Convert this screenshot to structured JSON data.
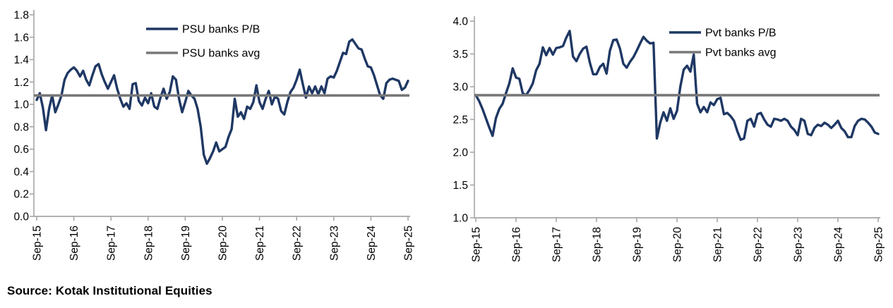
{
  "source_note": "Source: Kotak Institutional Equities",
  "colors": {
    "line_navy": "#1f3864",
    "avg_gray": "#787878",
    "axis_gray": "#a6a6a6",
    "text_black": "#000000"
  },
  "chart_data": [
    {
      "type": "line",
      "name": "psu-banks-pb",
      "title": "",
      "x_ticklabels": [
        "Sep-15",
        "Sep-16",
        "Sep-17",
        "Sep-18",
        "Sep-19",
        "Sep-20",
        "Sep-21",
        "Sep-22",
        "Sep-23",
        "Sep-24",
        "Sep-25"
      ],
      "ylim": [
        0.0,
        1.8
      ],
      "ytick_labels": [
        "0.0",
        "0.2",
        "0.4",
        "0.6",
        "0.8",
        "1.0",
        "1.2",
        "1.4",
        "1.6",
        "1.8"
      ],
      "grid": false,
      "legend_position": "top-center-inside",
      "series": [
        {
          "name": "PSU banks P/B",
          "kind": "line",
          "color_key": "line_navy",
          "values": [
            1.04,
            1.1,
            0.97,
            0.77,
            0.96,
            1.08,
            0.93,
            1.0,
            1.08,
            1.22,
            1.28,
            1.31,
            1.33,
            1.3,
            1.25,
            1.3,
            1.22,
            1.17,
            1.26,
            1.34,
            1.36,
            1.27,
            1.2,
            1.14,
            1.2,
            1.26,
            1.14,
            1.05,
            0.98,
            1.01,
            0.96,
            1.18,
            1.19,
            1.03,
            0.99,
            1.06,
            1.01,
            1.1,
            0.98,
            0.96,
            1.06,
            1.14,
            1.05,
            1.11,
            1.25,
            1.22,
            1.05,
            0.93,
            1.02,
            1.12,
            1.08,
            1.05,
            0.96,
            0.8,
            0.55,
            0.47,
            0.52,
            0.58,
            0.66,
            0.58,
            0.6,
            0.62,
            0.71,
            0.78,
            1.05,
            0.89,
            0.93,
            0.87,
            0.98,
            0.96,
            1.02,
            1.17,
            1.02,
            0.96,
            1.05,
            1.12,
            1.0,
            1.07,
            1.05,
            0.94,
            0.91,
            1.02,
            1.11,
            1.15,
            1.22,
            1.31,
            1.18,
            1.06,
            1.16,
            1.1,
            1.16,
            1.09,
            1.16,
            1.1,
            1.23,
            1.25,
            1.24,
            1.3,
            1.38,
            1.46,
            1.45,
            1.56,
            1.58,
            1.54,
            1.5,
            1.49,
            1.41,
            1.34,
            1.33,
            1.26,
            1.17,
            1.08,
            1.05,
            1.19,
            1.22,
            1.23,
            1.22,
            1.21,
            1.13,
            1.15,
            1.21
          ]
        },
        {
          "name": "PSU banks avg",
          "kind": "hline",
          "color_key": "avg_gray",
          "value": 1.08
        }
      ]
    },
    {
      "type": "line",
      "name": "pvt-banks-pb",
      "title": "",
      "x_ticklabels": [
        "Sep-15",
        "Sep-16",
        "Sep-17",
        "Sep-18",
        "Sep-19",
        "Sep-20",
        "Sep-21",
        "Sep-22",
        "Sep-23",
        "Sep-24",
        "Sep-25"
      ],
      "ylim": [
        1.0,
        4.0
      ],
      "ytick_labels": [
        "1.0",
        "1.5",
        "2.0",
        "2.5",
        "3.0",
        "3.5",
        "4.0"
      ],
      "grid": false,
      "legend_position": "top-right-inside",
      "series": [
        {
          "name": "Pvt banks P/B",
          "kind": "line",
          "color_key": "line_navy",
          "values": [
            2.87,
            2.78,
            2.66,
            2.52,
            2.38,
            2.25,
            2.52,
            2.66,
            2.74,
            2.9,
            3.05,
            3.28,
            3.14,
            3.12,
            2.9,
            2.87,
            2.95,
            3.05,
            3.25,
            3.35,
            3.6,
            3.48,
            3.59,
            3.49,
            3.59,
            3.6,
            3.62,
            3.75,
            3.85,
            3.46,
            3.39,
            3.5,
            3.58,
            3.61,
            3.37,
            3.19,
            3.19,
            3.3,
            3.35,
            3.2,
            3.55,
            3.71,
            3.72,
            3.58,
            3.35,
            3.29,
            3.38,
            3.45,
            3.55,
            3.66,
            3.76,
            3.7,
            3.66,
            3.67,
            2.21,
            2.45,
            2.61,
            2.48,
            2.67,
            2.51,
            2.63,
            3.0,
            3.26,
            3.32,
            3.23,
            3.49,
            2.74,
            2.61,
            2.69,
            2.61,
            2.76,
            2.72,
            2.81,
            2.83,
            2.58,
            2.6,
            2.55,
            2.48,
            2.32,
            2.19,
            2.21,
            2.48,
            2.51,
            2.39,
            2.58,
            2.6,
            2.5,
            2.42,
            2.39,
            2.51,
            2.5,
            2.48,
            2.51,
            2.48,
            2.39,
            2.34,
            2.26,
            2.51,
            2.48,
            2.28,
            2.26,
            2.37,
            2.42,
            2.4,
            2.45,
            2.42,
            2.37,
            2.42,
            2.48,
            2.37,
            2.32,
            2.23,
            2.23,
            2.4,
            2.48,
            2.51,
            2.5,
            2.45,
            2.39,
            2.3,
            2.28
          ]
        },
        {
          "name": "Pvt banks avg",
          "kind": "hline",
          "color_key": "avg_gray",
          "value": 2.87
        }
      ]
    }
  ]
}
